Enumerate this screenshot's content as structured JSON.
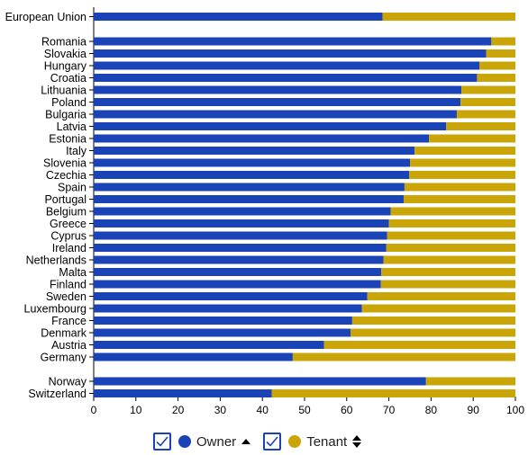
{
  "chart_data": {
    "type": "bar",
    "orientation": "horizontal",
    "stacked": true,
    "xlim": [
      0,
      100
    ],
    "xticks": [
      0,
      10,
      20,
      30,
      40,
      50,
      60,
      70,
      80,
      90,
      100
    ],
    "groups": [
      [
        "European Union"
      ],
      [
        "Romania",
        "Slovakia",
        "Hungary",
        "Croatia",
        "Lithuania",
        "Poland",
        "Bulgaria",
        "Latvia",
        "Estonia",
        "Italy",
        "Slovenia",
        "Czechia",
        "Spain",
        "Portugal",
        "Belgium",
        "Greece",
        "Cyprus",
        "Ireland",
        "Netherlands",
        "Malta",
        "Finland",
        "Sweden",
        "Luxembourg",
        "France",
        "Denmark",
        "Austria",
        "Germany"
      ],
      [
        "Norway",
        "Switzerland"
      ]
    ],
    "categories": [
      "European Union",
      "Romania",
      "Slovakia",
      "Hungary",
      "Croatia",
      "Lithuania",
      "Poland",
      "Bulgaria",
      "Latvia",
      "Estonia",
      "Italy",
      "Slovenia",
      "Czechia",
      "Spain",
      "Portugal",
      "Belgium",
      "Greece",
      "Cyprus",
      "Ireland",
      "Netherlands",
      "Malta",
      "Finland",
      "Sweden",
      "Luxembourg",
      "France",
      "Denmark",
      "Austria",
      "Germany",
      "Norway",
      "Switzerland"
    ],
    "series": [
      {
        "name": "Owner",
        "color": "#1a43b8",
        "values": [
          68.5,
          94.3,
          93.1,
          91.5,
          90.9,
          87.2,
          87.0,
          86.1,
          83.6,
          79.5,
          76.1,
          75.0,
          74.8,
          73.7,
          73.5,
          70.4,
          70.0,
          69.6,
          69.4,
          68.7,
          68.2,
          68.1,
          64.9,
          63.6,
          61.3,
          60.9,
          54.6,
          47.2,
          78.8,
          42.2
        ]
      },
      {
        "name": "Tenant",
        "color": "#c9a507",
        "values": [
          31.5,
          5.7,
          6.9,
          8.5,
          9.1,
          12.8,
          13.0,
          13.9,
          16.4,
          20.5,
          23.9,
          25.0,
          25.2,
          26.3,
          26.5,
          29.6,
          30.0,
          30.4,
          30.6,
          31.3,
          31.8,
          31.9,
          35.1,
          36.4,
          38.7,
          39.1,
          45.4,
          52.8,
          21.2,
          57.8
        ]
      }
    ]
  },
  "legend": {
    "items": [
      {
        "label": "Owner",
        "color": "#1a43b8",
        "sort_icon": "sort-asc-icon"
      },
      {
        "label": "Tenant",
        "color": "#c9a507",
        "sort_icon": "sort-both-icon"
      }
    ]
  }
}
